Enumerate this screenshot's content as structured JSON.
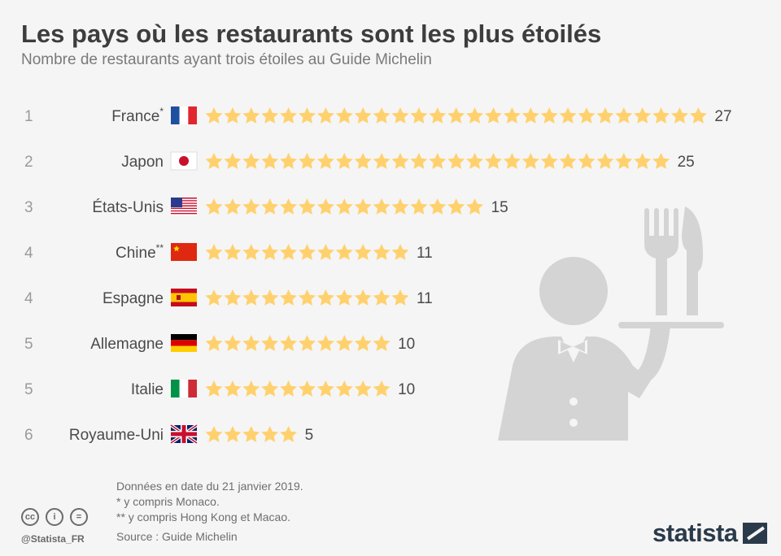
{
  "title": "Les pays où les restaurants sont les plus étoilés",
  "subtitle": "Nombre de restaurants ayant trois étoiles au Guide Michelin",
  "chart_data": {
    "type": "bar",
    "mark": "star-pictogram",
    "categories": [
      "France",
      "Japon",
      "États-Unis",
      "Chine",
      "Espagne",
      "Allemagne",
      "Italie",
      "Royaume-Uni"
    ],
    "category_notes": [
      "*",
      "",
      "",
      "**",
      "",
      "",
      "",
      ""
    ],
    "ranks": [
      "1",
      "2",
      "3",
      "4",
      "4",
      "5",
      "5",
      "6"
    ],
    "flags": [
      "flag-france-icon",
      "flag-japan-icon",
      "flag-usa-icon",
      "flag-china-icon",
      "flag-spain-icon",
      "flag-germany-icon",
      "flag-italy-icon",
      "flag-uk-icon"
    ],
    "values": [
      27,
      25,
      15,
      11,
      11,
      10,
      10,
      5
    ],
    "star_color": "#ffd16e",
    "rank_color": "#9a9a9a",
    "label_color": "#4a4a4a"
  },
  "notes": [
    "Données en date du 21 janvier 2019.",
    "*    y compris Monaco.",
    "** y compris Hong Kong et Macao."
  ],
  "source": "Source : Guide Michelin",
  "footer": {
    "handle": "@Statista_FR",
    "brand": "statista",
    "cc_icons": [
      "cc",
      "i",
      "="
    ]
  },
  "illustration": "waiter-with-tray-icon"
}
